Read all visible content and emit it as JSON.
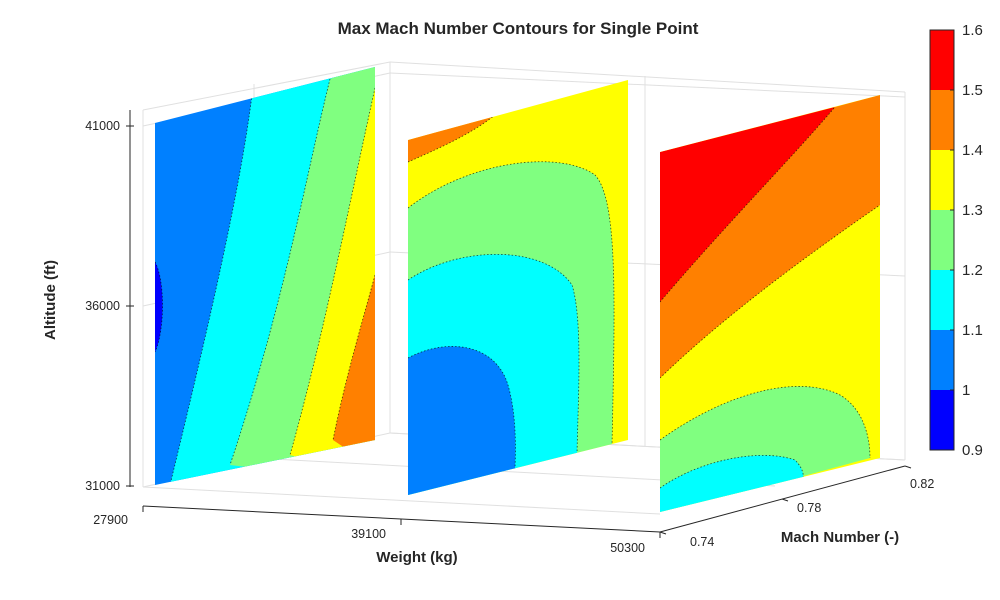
{
  "chart_data": {
    "type": "contour-slices-3d",
    "title": "Max Mach Number Contours for Single Point",
    "xlabel": "Weight (kg)",
    "ylabel": "Mach Number (-)",
    "zlabel": "Altitude (ft)",
    "x_ticks": [
      "27900",
      "39100",
      "50300"
    ],
    "y_ticks": [
      "0.74",
      "0.78",
      "0.82"
    ],
    "z_ticks": [
      "31000",
      "36000",
      "41000"
    ],
    "xlim": [
      27900,
      50300
    ],
    "ylim": [
      0.74,
      0.82
    ],
    "zlim": [
      31000,
      41000
    ],
    "grid": true,
    "colormap": "jet",
    "colorbar": {
      "ticks": [
        "0.9",
        "1",
        "1.1",
        "1.2",
        "1.3",
        "1.4",
        "1.5",
        "1.6"
      ],
      "levels": [
        {
          "range": [
            0.9,
            1.0
          ],
          "color": "#0000ff"
        },
        {
          "range": [
            1.0,
            1.1
          ],
          "color": "#0080ff"
        },
        {
          "range": [
            1.1,
            1.2
          ],
          "color": "#00ffff"
        },
        {
          "range": [
            1.2,
            1.3
          ],
          "color": "#80ff80"
        },
        {
          "range": [
            1.3,
            1.4
          ],
          "color": "#ffff00"
        },
        {
          "range": [
            1.4,
            1.5
          ],
          "color": "#ff8000"
        },
        {
          "range": [
            1.5,
            1.6
          ],
          "color": "#ff0000"
        }
      ]
    },
    "slices": [
      {
        "mach": 0.74,
        "weight_range": [
          27900,
          50300
        ],
        "alt_range": [
          31000,
          41000
        ],
        "levels_present": [
          0.9,
          1.0,
          1.1,
          1.2,
          1.3,
          1.4
        ]
      },
      {
        "mach": 0.78,
        "weight_range": [
          27900,
          50300
        ],
        "alt_range": [
          31000,
          41000
        ],
        "levels_present": [
          1.0,
          1.1,
          1.2,
          1.3,
          1.4
        ]
      },
      {
        "mach": 0.82,
        "weight_range": [
          27900,
          50300
        ],
        "alt_range": [
          31000,
          41000
        ],
        "levels_present": [
          1.1,
          1.2,
          1.3,
          1.4,
          1.5
        ]
      }
    ]
  }
}
